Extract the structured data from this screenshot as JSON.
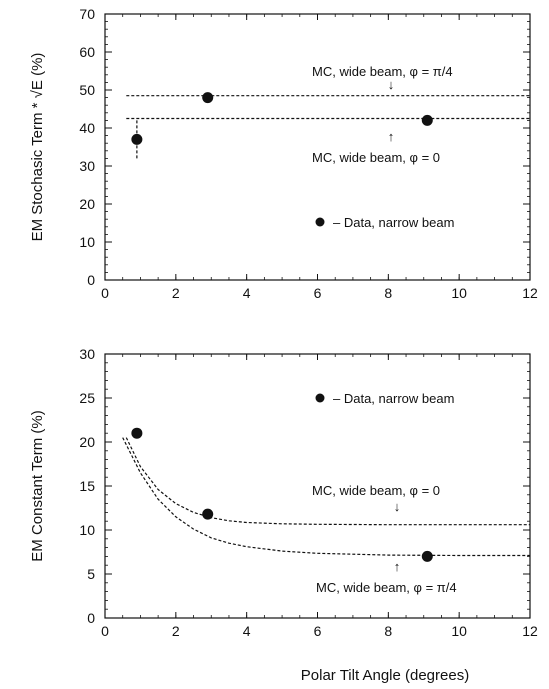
{
  "chart_data": [
    {
      "type": "scatter",
      "title": "",
      "xlabel": "",
      "ylabel": "EM Stochasic Term * √E (%)",
      "xlim": [
        0,
        12
      ],
      "ylim": [
        0,
        70
      ],
      "xticks": [
        "0",
        "2",
        "4",
        "6",
        "8",
        "10",
        "12"
      ],
      "yticks": [
        "0",
        "10",
        "20",
        "30",
        "40",
        "50",
        "60",
        "70"
      ],
      "grid": false,
      "series": [
        {
          "name": "– Data, narrow beam",
          "kind": "points",
          "x": [
            0.9,
            2.9,
            9.1
          ],
          "y": [
            37,
            48,
            42
          ],
          "yerr": [
            5,
            1,
            1
          ],
          "color": "#111111"
        },
        {
          "name": "MC, wide beam, φ = π/4",
          "kind": "dashed-line",
          "x": [
            0.6,
            12
          ],
          "y": [
            48.5,
            48.5
          ],
          "color": "#111111"
        },
        {
          "name": "MC, wide beam, φ = 0",
          "kind": "dashed-line",
          "x": [
            0.6,
            12
          ],
          "y": [
            42.5,
            42.5
          ],
          "color": "#111111"
        }
      ],
      "annotations": [
        {
          "text": "MC, wide beam, φ = π/4",
          "arrow": "↓",
          "x": 8.2,
          "y": 48.5,
          "side": "above"
        },
        {
          "text": "MC, wide beam, φ = 0",
          "arrow": "↑",
          "x": 8.2,
          "y": 42.5,
          "side": "below"
        }
      ],
      "legend": {
        "text": "– Data, narrow beam",
        "placement": "lower-right"
      }
    },
    {
      "type": "scatter",
      "title": "",
      "xlabel": "Polar Tilt Angle (degrees)",
      "ylabel": "EM Constant Term (%)",
      "xlim": [
        0,
        12
      ],
      "ylim": [
        0,
        30
      ],
      "xticks": [
        "0",
        "2",
        "4",
        "6",
        "8",
        "10",
        "12"
      ],
      "yticks": [
        "0",
        "5",
        "10",
        "15",
        "20",
        "25",
        "30"
      ],
      "grid": false,
      "series": [
        {
          "name": "– Data, narrow beam",
          "kind": "points",
          "x": [
            0.9,
            2.9,
            9.1
          ],
          "y": [
            21,
            11.8,
            7
          ],
          "color": "#111111"
        },
        {
          "name": "MC, wide beam, φ = 0",
          "kind": "dashed-curve",
          "x": [
            0.6,
            1.0,
            1.5,
            2.0,
            2.5,
            3.0,
            3.5,
            4.0,
            5.0,
            6.0,
            8.0,
            10.0,
            12.0
          ],
          "y": [
            20.5,
            17.2,
            14.6,
            13.0,
            12.0,
            11.4,
            11.05,
            10.85,
            10.7,
            10.65,
            10.6,
            10.6,
            10.6
          ],
          "color": "#111111"
        },
        {
          "name": "MC, wide beam, φ = π/4",
          "kind": "dashed-curve",
          "x": [
            0.5,
            1.0,
            1.5,
            2.0,
            2.5,
            3.0,
            3.5,
            4.0,
            5.0,
            6.0,
            8.0,
            10.0,
            12.0
          ],
          "y": [
            20.5,
            16.5,
            13.5,
            11.5,
            10.1,
            9.1,
            8.5,
            8.1,
            7.6,
            7.35,
            7.15,
            7.1,
            7.1
          ],
          "color": "#111111"
        }
      ],
      "annotations": [
        {
          "text": "MC, wide beam, φ = 0",
          "arrow": "↓",
          "x": 8.2,
          "y": 10.6,
          "side": "above"
        },
        {
          "text": "MC, wide beam, φ = π/4",
          "arrow": "↑",
          "x": 8.2,
          "y": 7.1,
          "side": "below"
        }
      ],
      "legend": {
        "text": "– Data, narrow beam",
        "placement": "upper-right"
      }
    }
  ]
}
